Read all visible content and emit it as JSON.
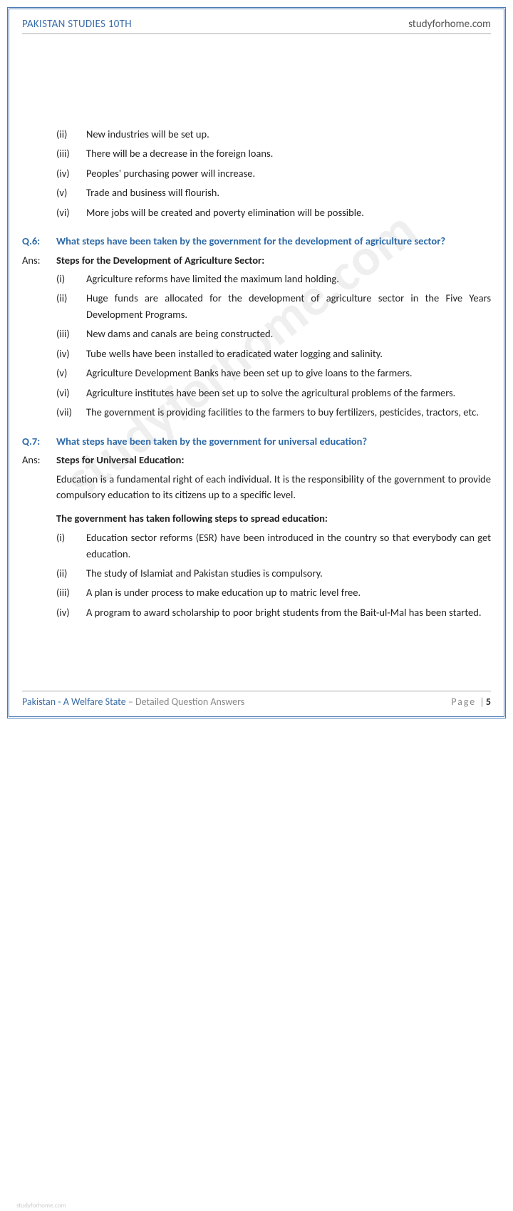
{
  "colors": {
    "accent": "#3a6da8",
    "border": "#4a7ab5",
    "text": "#222",
    "muted": "#888"
  },
  "header": {
    "left": "PAKISTAN STUDIES 10TH",
    "right": "studyforhome.com"
  },
  "watermark": "studyforhome.com",
  "small_watermark": "studyforhome.com",
  "top_list": [
    {
      "m": "(ii)",
      "t": "New industries will be set up."
    },
    {
      "m": "(iii)",
      "t": "There will be a decrease in the foreign loans."
    },
    {
      "m": "(iv)",
      "t": "Peoples' purchasing power will increase."
    },
    {
      "m": "(v)",
      "t": "Trade and business will flourish."
    },
    {
      "m": "(vi)",
      "t": "More jobs will be created and poverty elimination will be possible."
    }
  ],
  "q6": {
    "label": "Q.6:",
    "text": "What steps have been taken by the government for the development of agriculture sector?",
    "ans_label": "Ans:",
    "ans_heading": "Steps for the Development of Agriculture Sector:",
    "items": [
      {
        "m": "(i)",
        "t": "Agriculture reforms have limited the maximum land holding."
      },
      {
        "m": "(ii)",
        "t": "Huge funds are allocated for the development of agriculture sector in the Five Years Development Programs."
      },
      {
        "m": "(iii)",
        "t": "New dams and canals are being constructed."
      },
      {
        "m": "(iv)",
        "t": "Tube wells have been installed to eradicated water logging and salinity."
      },
      {
        "m": "(v)",
        "t": "Agriculture Development Banks have been set up to give loans to the farmers."
      },
      {
        "m": "(vi)",
        "t": "Agriculture institutes have been set up to solve the agricultural problems of the farmers."
      },
      {
        "m": "(vii)",
        "t": "The government is providing facilities to the farmers to buy fertilizers, pesticides, tractors, etc."
      }
    ]
  },
  "q7": {
    "label": "Q.7:",
    "text": "What steps have been taken by the government for universal education?",
    "ans_label": "Ans:",
    "ans_heading": "Steps for Universal Education:",
    "intro": "Education is a fundamental right of each individual. It is the responsibility of the government to provide compulsory education to its citizens up to a specific level.",
    "sub_heading": "The government has taken following steps to spread education:",
    "items": [
      {
        "m": "(i)",
        "t": "Education sector reforms (ESR) have been introduced in the country so that everybody can get education."
      },
      {
        "m": "(ii)",
        "t": "The study of Islamiat and Pakistan studies is compulsory."
      },
      {
        "m": "(iii)",
        "t": "A plan is under process to make education up to matric level free."
      },
      {
        "m": "(iv)",
        "t": "A program to award scholarship to poor bright students from the Bait-ul-Mal has been started."
      }
    ]
  },
  "footer": {
    "title": "Pakistan - A Welfare State",
    "sub": " – Detailed Question Answers",
    "page_label": "Page |",
    "page_num": "5"
  }
}
